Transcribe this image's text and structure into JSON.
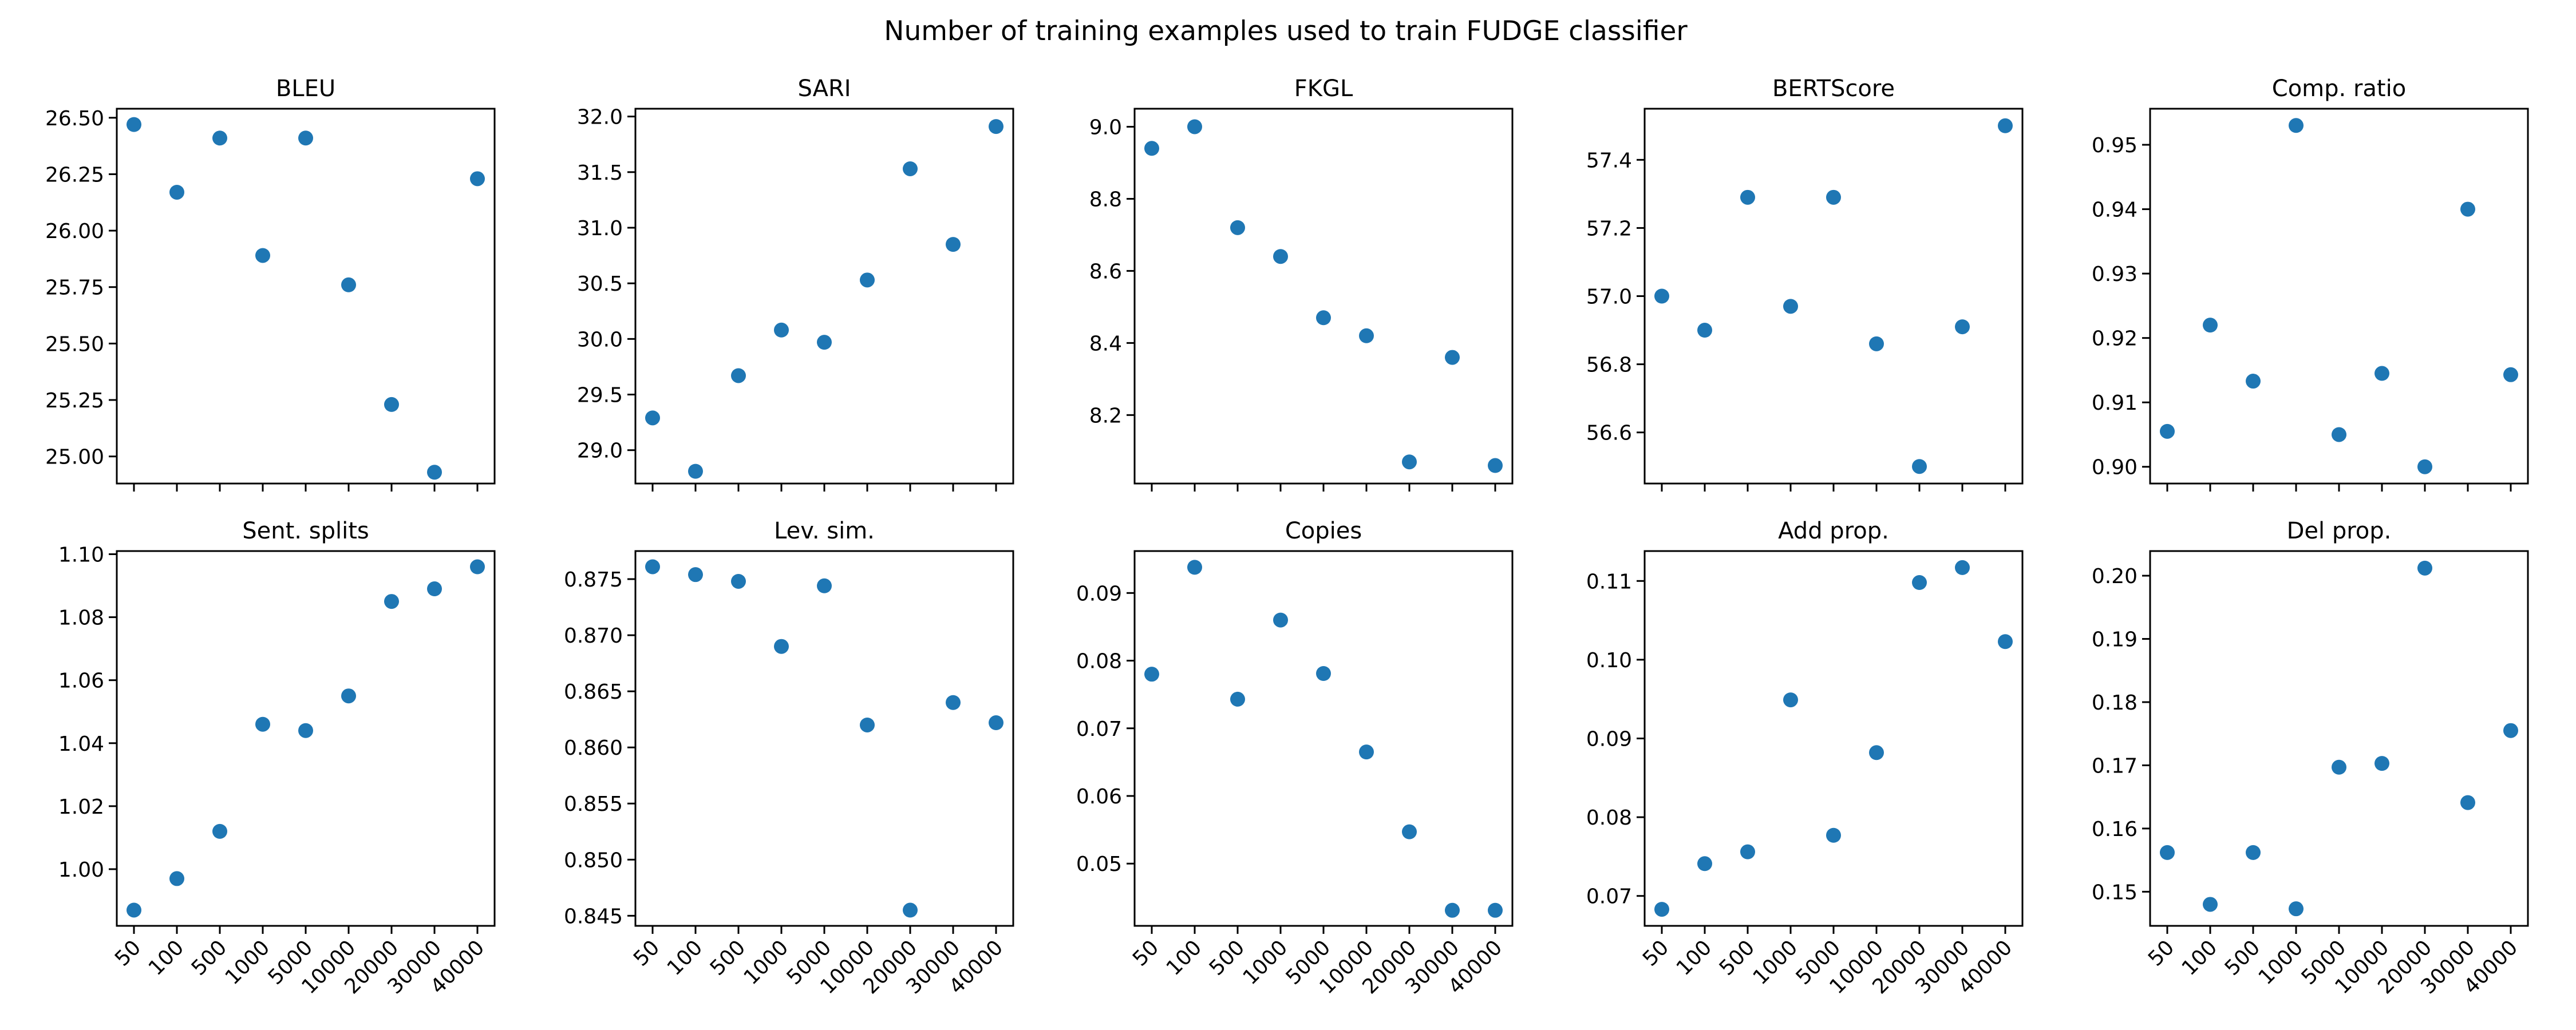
{
  "figure": {
    "title": "Number of training examples used to train FUDGE classifier",
    "point_color": "#1f77b4"
  },
  "chart_data": [
    {
      "type": "scatter",
      "title": "BLEU",
      "x": [
        "50",
        "100",
        "500",
        "1000",
        "5000",
        "10000",
        "20000",
        "30000",
        "40000"
      ],
      "y": [
        26.47,
        26.17,
        26.41,
        25.89,
        26.41,
        25.76,
        25.23,
        24.93,
        26.23
      ],
      "ylim": [
        24.88,
        26.54
      ],
      "yticks": [
        25.0,
        25.25,
        25.5,
        25.75,
        26.0,
        26.25,
        26.5
      ],
      "ytick_labels": [
        "25.00",
        "25.25",
        "25.50",
        "25.75",
        "26.00",
        "26.25",
        "26.50"
      ],
      "show_xtick_labels": false
    },
    {
      "type": "scatter",
      "title": "SARI",
      "x": [
        "50",
        "100",
        "500",
        "1000",
        "5000",
        "10000",
        "20000",
        "30000",
        "40000"
      ],
      "y": [
        29.29,
        28.81,
        29.67,
        30.08,
        29.97,
        30.53,
        31.53,
        30.85,
        31.91
      ],
      "ylim": [
        28.7,
        32.07
      ],
      "yticks": [
        29.0,
        29.5,
        30.0,
        30.5,
        31.0,
        31.5,
        32.0
      ],
      "ytick_labels": [
        "29.0",
        "29.5",
        "30.0",
        "30.5",
        "31.0",
        "31.5",
        "32.0"
      ],
      "show_xtick_labels": false
    },
    {
      "type": "scatter",
      "title": "FKGL",
      "x": [
        "50",
        "100",
        "500",
        "1000",
        "5000",
        "10000",
        "20000",
        "30000",
        "40000"
      ],
      "y": [
        8.94,
        9.0,
        8.72,
        8.64,
        8.47,
        8.42,
        8.07,
        8.36,
        8.06
      ],
      "ylim": [
        8.01,
        9.05
      ],
      "yticks": [
        8.2,
        8.4,
        8.6,
        8.8,
        9.0
      ],
      "ytick_labels": [
        "8.2",
        "8.4",
        "8.6",
        "8.8",
        "9.0"
      ],
      "show_xtick_labels": false
    },
    {
      "type": "scatter",
      "title": "BERTScore",
      "x": [
        "50",
        "100",
        "500",
        "1000",
        "5000",
        "10000",
        "20000",
        "30000",
        "40000"
      ],
      "y": [
        57.0,
        56.9,
        57.29,
        56.97,
        57.29,
        56.86,
        56.5,
        56.91,
        57.5
      ],
      "ylim": [
        56.45,
        57.55
      ],
      "yticks": [
        56.6,
        56.8,
        57.0,
        57.2,
        57.4
      ],
      "ytick_labels": [
        "56.6",
        "56.8",
        "57.0",
        "57.2",
        "57.4"
      ],
      "show_xtick_labels": false
    },
    {
      "type": "scatter",
      "title": "Comp. ratio",
      "x": [
        "50",
        "100",
        "500",
        "1000",
        "5000",
        "10000",
        "20000",
        "30000",
        "40000"
      ],
      "y": [
        0.9055,
        0.922,
        0.9133,
        0.953,
        0.905,
        0.9145,
        0.9,
        0.94,
        0.9143
      ],
      "ylim": [
        0.8974,
        0.9556
      ],
      "yticks": [
        0.9,
        0.91,
        0.92,
        0.93,
        0.94,
        0.95
      ],
      "ytick_labels": [
        "0.90",
        "0.91",
        "0.92",
        "0.93",
        "0.94",
        "0.95"
      ],
      "show_xtick_labels": false
    },
    {
      "type": "scatter",
      "title": "Sent. splits",
      "x": [
        "50",
        "100",
        "500",
        "1000",
        "5000",
        "10000",
        "20000",
        "30000",
        "40000"
      ],
      "y": [
        0.987,
        0.997,
        1.012,
        1.046,
        1.044,
        1.055,
        1.085,
        1.089,
        1.096
      ],
      "ylim": [
        0.982,
        1.101
      ],
      "yticks": [
        1.0,
        1.02,
        1.04,
        1.06,
        1.08,
        1.1
      ],
      "ytick_labels": [
        "1.00",
        "1.02",
        "1.04",
        "1.06",
        "1.08",
        "1.10"
      ],
      "show_xtick_labels": true
    },
    {
      "type": "scatter",
      "title": "Lev. sim.",
      "x": [
        "50",
        "100",
        "500",
        "1000",
        "5000",
        "10000",
        "20000",
        "30000",
        "40000"
      ],
      "y": [
        0.8761,
        0.8754,
        0.8748,
        0.869,
        0.8744,
        0.862,
        0.8455,
        0.864,
        0.8622
      ],
      "ylim": [
        0.8441,
        0.8775
      ],
      "yticks": [
        0.845,
        0.85,
        0.855,
        0.86,
        0.865,
        0.87,
        0.875
      ],
      "ytick_labels": [
        "0.845",
        "0.850",
        "0.855",
        "0.860",
        "0.865",
        "0.870",
        "0.875"
      ],
      "show_xtick_labels": true
    },
    {
      "type": "scatter",
      "title": "Copies",
      "x": [
        "50",
        "100",
        "500",
        "1000",
        "5000",
        "10000",
        "20000",
        "30000",
        "40000"
      ],
      "y": [
        0.078,
        0.0938,
        0.0743,
        0.086,
        0.0781,
        0.0665,
        0.0547,
        0.0431,
        0.0431
      ],
      "ylim": [
        0.0408,
        0.0962
      ],
      "yticks": [
        0.05,
        0.06,
        0.07,
        0.08,
        0.09
      ],
      "ytick_labels": [
        "0.05",
        "0.06",
        "0.07",
        "0.08",
        "0.09"
      ],
      "show_xtick_labels": true
    },
    {
      "type": "scatter",
      "title": "Add prop.",
      "x": [
        "50",
        "100",
        "500",
        "1000",
        "5000",
        "10000",
        "20000",
        "30000",
        "40000"
      ],
      "y": [
        0.0683,
        0.0741,
        0.0756,
        0.0949,
        0.0777,
        0.0882,
        0.1098,
        0.1117,
        0.1023
      ],
      "ylim": [
        0.0662,
        0.1138
      ],
      "yticks": [
        0.07,
        0.08,
        0.09,
        0.1,
        0.11
      ],
      "ytick_labels": [
        "0.07",
        "0.08",
        "0.09",
        "0.10",
        "0.11"
      ],
      "show_xtick_labels": true
    },
    {
      "type": "scatter",
      "title": "Del prop.",
      "x": [
        "50",
        "100",
        "500",
        "1000",
        "5000",
        "10000",
        "20000",
        "30000",
        "40000"
      ],
      "y": [
        0.1562,
        0.148,
        0.1562,
        0.1473,
        0.1697,
        0.1703,
        0.2012,
        0.1641,
        0.1755
      ],
      "ylim": [
        0.1446,
        0.2039
      ],
      "yticks": [
        0.15,
        0.16,
        0.17,
        0.18,
        0.19,
        0.2
      ],
      "ytick_labels": [
        "0.15",
        "0.16",
        "0.17",
        "0.18",
        "0.19",
        "0.20"
      ],
      "show_xtick_labels": true
    }
  ]
}
